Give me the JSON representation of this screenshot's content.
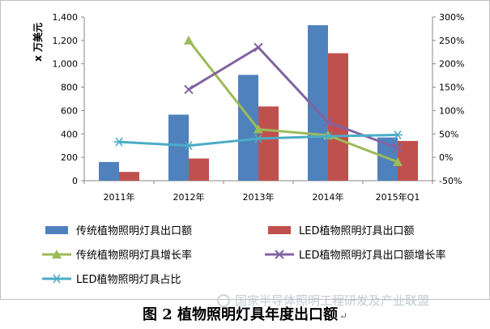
{
  "chart_data": {
    "type": "bar",
    "categories": [
      "2011年",
      "2012年",
      "2013年",
      "2014年",
      "2015年Q1"
    ],
    "ylabel": "x 万美元",
    "ylim": [
      0,
      1400
    ],
    "yticks": [
      "0",
      "200",
      "400",
      "600",
      "800",
      "1,000",
      "1,200",
      "1,400"
    ],
    "y2lim": [
      -50,
      300
    ],
    "y2ticks": [
      "-50%",
      "0%",
      "50%",
      "100%",
      "150%",
      "200%",
      "250%",
      "300%"
    ],
    "series": [
      {
        "name": "传统植物照明灯具出口额",
        "type": "bar",
        "axis": "left",
        "color": "#4f81bd",
        "values": [
          160,
          565,
          905,
          1330,
          370
        ]
      },
      {
        "name": "LED植物照明灯具出口额",
        "type": "bar",
        "axis": "left",
        "color": "#c0504d",
        "values": [
          75,
          190,
          635,
          1090,
          340
        ]
      },
      {
        "name": "传统植物照明灯具增长率",
        "type": "line",
        "axis": "right",
        "color": "#9bbb59",
        "marker": "triangle",
        "values": [
          null,
          250,
          60,
          47,
          -10
        ]
      },
      {
        "name": "LED植物照明灯具出口额增长率",
        "type": "line",
        "axis": "right",
        "color": "#8064a2",
        "marker": "x",
        "values": [
          null,
          145,
          235,
          75,
          20
        ]
      },
      {
        "name": "LED植物照明灯具占比",
        "type": "line",
        "axis": "right",
        "color": "#4bacc6",
        "marker": "star",
        "values": [
          33,
          25,
          40,
          45,
          48
        ]
      }
    ],
    "grid": false,
    "legend_position": "bottom"
  },
  "caption": "图 2 植物照明灯具年度出口额",
  "caption_mark": "↵",
  "watermark": "国家半导体照明工程研发及产业联盟"
}
